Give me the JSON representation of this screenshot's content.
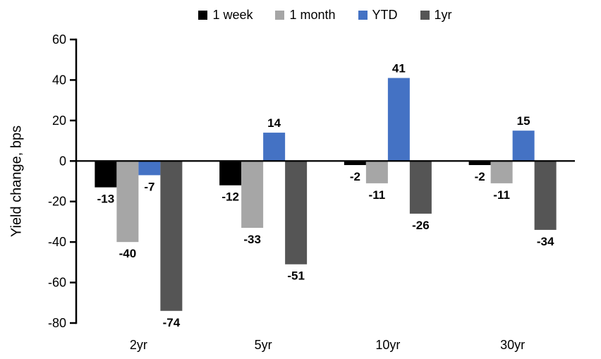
{
  "chart_data": {
    "type": "bar",
    "title": "",
    "ylabel": "Yield change, bps",
    "xlabel": "",
    "categories": [
      "2yr",
      "5yr",
      "10yr",
      "30yr"
    ],
    "series": [
      {
        "name": "1 week",
        "color": "#000000",
        "values": [
          -13,
          -12,
          -2,
          -2
        ]
      },
      {
        "name": "1 month",
        "color": "#A6A6A6",
        "values": [
          -40,
          -33,
          -11,
          -11
        ]
      },
      {
        "name": "YTD",
        "color": "#4472C4",
        "values": [
          -7,
          14,
          41,
          15
        ]
      },
      {
        "name": "1yr",
        "color": "#555555",
        "values": [
          -74,
          -51,
          -26,
          -34
        ]
      }
    ],
    "ylim": [
      -80,
      60
    ],
    "ytick_step": 20,
    "yticks": [
      60,
      40,
      20,
      0,
      -20,
      -40,
      -60,
      -80
    ],
    "legend_position": "top",
    "grid": false,
    "data_labels": true,
    "axis_color": "#000000",
    "background_color": "#FFFFFF"
  }
}
